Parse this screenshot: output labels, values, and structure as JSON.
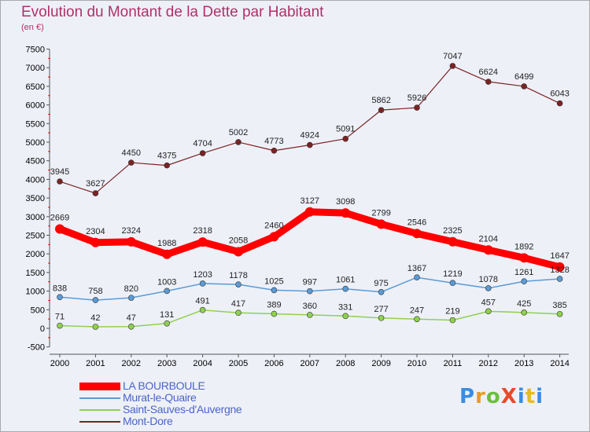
{
  "title": "Evolution du Montant de la Dette par Habitant",
  "subtitle": "(en €)",
  "logo_text": "ProXiti",
  "chart_data": {
    "type": "line",
    "x": [
      2000,
      2001,
      2002,
      2003,
      2004,
      2005,
      2006,
      2007,
      2008,
      2009,
      2010,
      2011,
      2012,
      2013,
      2014
    ],
    "x_tick_labels": [
      "2000",
      "2001",
      "2002",
      "2003",
      "2004",
      "2005",
      "2006",
      "2007",
      "2008",
      "2009",
      "2010",
      "2011",
      "2012",
      "2013",
      "2014"
    ],
    "y_tick_labels": [
      "-500",
      "0",
      "500",
      "1000",
      "1500",
      "2000",
      "2500",
      "3000",
      "3500",
      "4000",
      "4500",
      "5000",
      "5500",
      "6000",
      "6500",
      "7000",
      "7500"
    ],
    "ylim": [
      -500,
      7500
    ],
    "grid": false,
    "legend_position": "bottom-left",
    "series": [
      {
        "name": "LA BOURBOULE",
        "color": "#ff0000",
        "values": [
          2669,
          2304,
          2324,
          1988,
          2318,
          2058,
          2460,
          3127,
          3098,
          2799,
          2546,
          2325,
          2104,
          1892,
          1647
        ],
        "labels": [
          "2669",
          "2304",
          "2324",
          "1988",
          "2318",
          "2058",
          "2460",
          "3127",
          "3098",
          "2799",
          "2546",
          "2325",
          "2104",
          "1892",
          "1647"
        ]
      },
      {
        "name": "Murat-le-Quaire",
        "color": "#5b9bd5",
        "values": [
          838,
          758,
          820,
          1003,
          1203,
          1178,
          1025,
          997,
          1061,
          975,
          1367,
          1219,
          1078,
          1261,
          1328
        ],
        "labels": [
          "838",
          "758",
          "820",
          "1003",
          "1203",
          "1178",
          "1025",
          "997",
          "1061",
          "975",
          "1367",
          "1219",
          "1078",
          "1261",
          "1328"
        ]
      },
      {
        "name": "Saint-Sauves-d'Auvergne",
        "color": "#8fd14f",
        "values": [
          71,
          42,
          47,
          131,
          491,
          417,
          389,
          360,
          331,
          277,
          247,
          219,
          457,
          425,
          385
        ],
        "labels": [
          "71",
          "42",
          "47",
          "131",
          "491",
          "417",
          "389",
          "360",
          "331",
          "277",
          "247",
          "219",
          "457",
          "425",
          "385"
        ]
      },
      {
        "name": "Mont-Dore",
        "color": "#7b2323",
        "values": [
          3945,
          3627,
          4450,
          4375,
          4704,
          5002,
          4773,
          4924,
          5091,
          5862,
          5926,
          7047,
          6624,
          6499,
          6043
        ],
        "labels": [
          "3945",
          "3627",
          "4450",
          "4375",
          "4704",
          "5002",
          "4773",
          "4924",
          "5091",
          "5862",
          "5926",
          "7047",
          "6624",
          "6499",
          "6043"
        ]
      }
    ]
  }
}
